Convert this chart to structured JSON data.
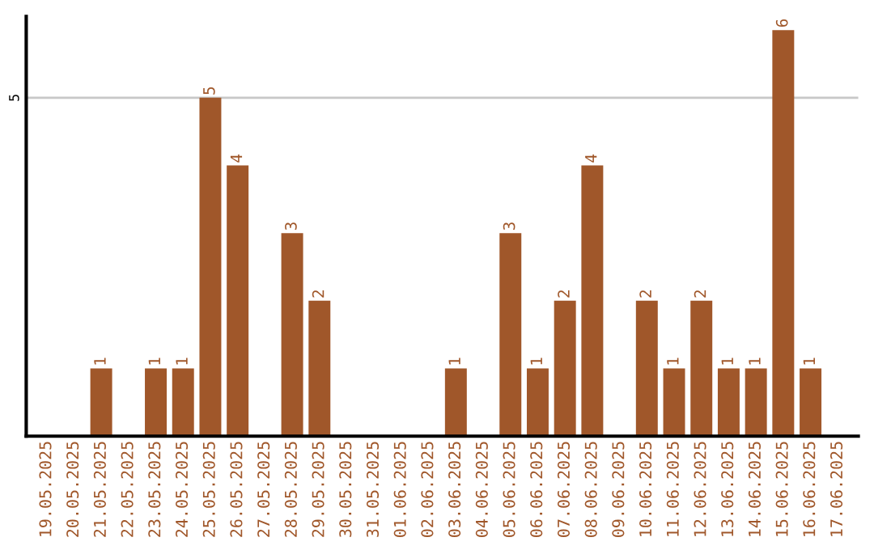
{
  "chart_data": {
    "type": "bar",
    "categories": [
      "19.05.2025",
      "20.05.2025",
      "21.05.2025",
      "22.05.2025",
      "23.05.2025",
      "24.05.2025",
      "25.05.2025",
      "26.05.2025",
      "27.05.2025",
      "28.05.2025",
      "29.05.2025",
      "30.05.2025",
      "31.05.2025",
      "01.06.2025",
      "02.06.2025",
      "03.06.2025",
      "04.06.2025",
      "05.06.2025",
      "06.06.2025",
      "07.06.2025",
      "08.06.2025",
      "09.06.2025",
      "10.06.2025",
      "11.06.2025",
      "12.06.2025",
      "13.06.2025",
      "14.06.2025",
      "15.06.2025",
      "16.06.2025",
      "17.06.2025"
    ],
    "values": [
      0,
      0,
      1,
      0,
      1,
      1,
      5,
      4,
      0,
      3,
      2,
      0,
      0,
      0,
      0,
      1,
      0,
      3,
      1,
      2,
      4,
      0,
      2,
      1,
      2,
      1,
      1,
      6,
      1,
      0
    ],
    "value_labels": [
      null,
      null,
      "1",
      null,
      "1",
      "1",
      "5",
      "4",
      null,
      "3",
      "2",
      null,
      null,
      null,
      null,
      "1",
      null,
      "3",
      "1",
      "2",
      "4",
      null,
      "2",
      "1",
      "2",
      "1",
      "1",
      "6",
      "1",
      null
    ],
    "color": "#a0572a",
    "ylim": [
      0,
      6.2
    ],
    "yticks": [
      5
    ],
    "grid": "y",
    "legend": false
  }
}
